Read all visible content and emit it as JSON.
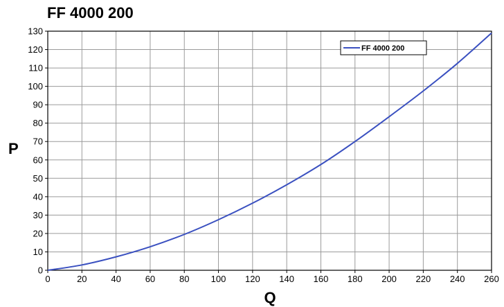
{
  "chart_data": {
    "type": "line",
    "title": "FF 4000 200",
    "xlabel": "Q",
    "ylabel": "P",
    "xlim": [
      0,
      260
    ],
    "ylim": [
      0,
      130
    ],
    "x_ticks": [
      0,
      20,
      40,
      60,
      80,
      100,
      120,
      140,
      160,
      180,
      200,
      220,
      240,
      260
    ],
    "y_ticks": [
      0,
      10,
      20,
      30,
      40,
      50,
      60,
      70,
      80,
      90,
      100,
      110,
      120,
      130
    ],
    "grid": true,
    "legend_position": "top-right",
    "series": [
      {
        "name": "FF 4000 200",
        "color": "#3a50c0",
        "x": [
          0,
          20,
          40,
          60,
          80,
          100,
          120,
          140,
          160,
          180,
          200,
          220,
          240,
          260
        ],
        "y": [
          0,
          2.9,
          7.3,
          12.8,
          19.5,
          27.5,
          36.5,
          46.5,
          57.5,
          70,
          83.5,
          97.5,
          112.5,
          129
        ]
      }
    ]
  }
}
